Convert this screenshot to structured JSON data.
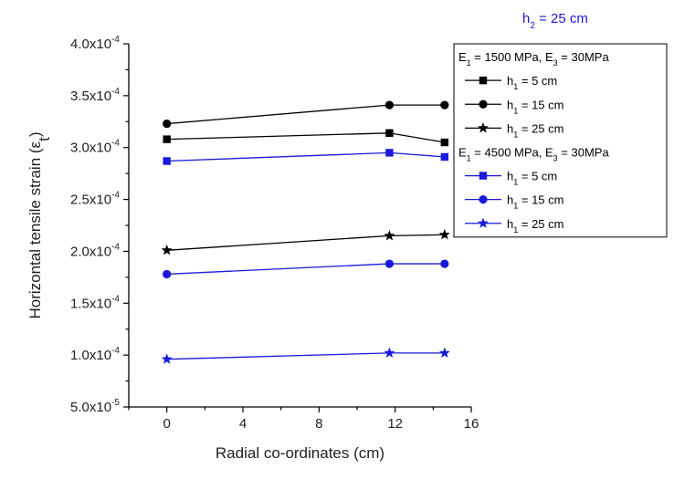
{
  "chart_data": {
    "type": "line",
    "annotation": {
      "base": "h",
      "sub": "2",
      "rest": " = 25 cm",
      "color": "#1a1adc"
    },
    "xlabel": "Radial co-ordinates (cm)",
    "ylabel": {
      "base": "Horizontal tensile strain (ε",
      "sub": "t",
      "rest": ")"
    },
    "xlim": [
      -2,
      16
    ],
    "ylim": [
      5e-05,
      0.0004
    ],
    "xticks": [
      0,
      4,
      8,
      12,
      16
    ],
    "yticks": [
      {
        "value": 5e-05,
        "mant": "5.0x10",
        "exp": "-5"
      },
      {
        "value": 0.0001,
        "mant": "1.0x10",
        "exp": "-4"
      },
      {
        "value": 0.00015,
        "mant": "1.5x10",
        "exp": "-4"
      },
      {
        "value": 0.0002,
        "mant": "2.0x10",
        "exp": "-4"
      },
      {
        "value": 0.00025,
        "mant": "2.5x10",
        "exp": "-4"
      },
      {
        "value": 0.0003,
        "mant": "3.0x10",
        "exp": "-4"
      },
      {
        "value": 0.00035,
        "mant": "3.5x10",
        "exp": "-4"
      },
      {
        "value": 0.0004,
        "mant": "4.0x10",
        "exp": "-4"
      }
    ],
    "x": [
      0,
      11.7,
      14.6
    ],
    "legend": {
      "placement": "right",
      "groups": [
        {
          "header": [
            [
              "E",
              "1",
              " = 1500 MPa, E"
            ],
            [
              "",
              "3",
              " = 30MPa"
            ]
          ],
          "series": [
            {
              "label": [
                "h",
                "1",
                " =  5 cm"
              ],
              "marker": "square",
              "color": "#000000",
              "values": [
                0.000308,
                0.000314,
                0.000305
              ]
            },
            {
              "label": [
                "h",
                "1",
                " = 15 cm"
              ],
              "marker": "circle",
              "color": "#000000",
              "values": [
                0.000323,
                0.000341,
                0.000341
              ]
            },
            {
              "label": [
                "h",
                "1",
                " = 25 cm"
              ],
              "marker": "star",
              "color": "#000000",
              "values": [
                0.000201,
                0.000215,
                0.000216
              ]
            }
          ]
        },
        {
          "header": [
            [
              "E",
              "1",
              " = 4500 MPa, E"
            ],
            [
              "",
              "3",
              " = 30MPa"
            ]
          ],
          "series": [
            {
              "label": [
                "h",
                "1",
                " =  5 cm"
              ],
              "marker": "square",
              "color": "#1a1adc",
              "values": [
                0.000287,
                0.000295,
                0.000291
              ]
            },
            {
              "label": [
                "h",
                "1",
                " = 15 cm"
              ],
              "marker": "circle",
              "color": "#1a1adc",
              "values": [
                0.000178,
                0.000188,
                0.000188
              ]
            },
            {
              "label": [
                "h",
                "1",
                " = 25 cm"
              ],
              "marker": "star",
              "color": "#1a1adc",
              "values": [
                9.6e-05,
                0.000102,
                0.000102
              ]
            }
          ]
        }
      ]
    }
  }
}
